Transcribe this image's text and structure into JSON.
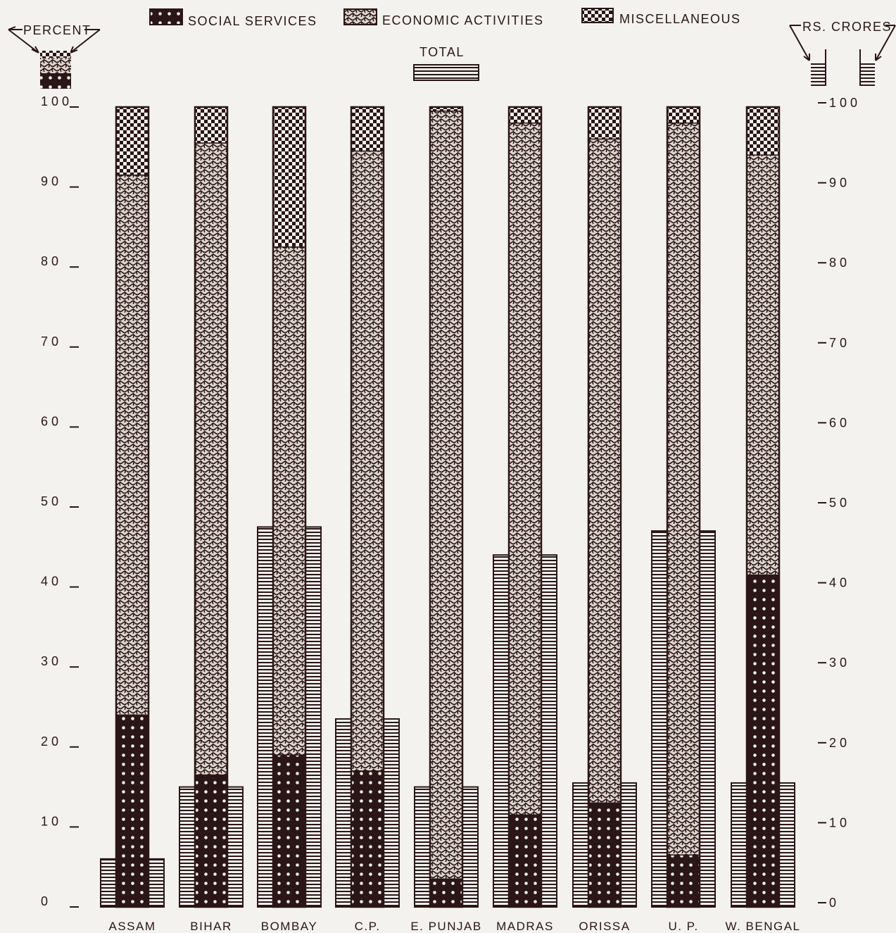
{
  "legend": {
    "social_services": "SOCIAL SERVICES",
    "economic_activities": "ECONOMIC ACTIVITIES",
    "miscellaneous": "MISCELLANEOUS",
    "total": "TOTAL"
  },
  "axis": {
    "left_label": "PERCENT",
    "right_label": "RS. CRORES"
  },
  "colors": {
    "ink": "#2a1616",
    "paper": "#f4f2ee"
  },
  "chart_data": {
    "type": "bar",
    "categories": [
      "ASSAM",
      "BIHAR",
      "BOMBAY",
      "C.P.",
      "E. PUNJAB",
      "MADRAS",
      "ORISSA",
      "U. P.",
      "W. BENGAL"
    ],
    "series": [
      {
        "name": "SOCIAL SERVICES",
        "values": [
          24.0,
          16.5,
          19.0,
          17.0,
          3.5,
          11.5,
          13.0,
          6.5,
          41.5
        ]
      },
      {
        "name": "ECONOMIC ACTIVITIES",
        "values": [
          67.5,
          79.0,
          63.5,
          77.5,
          96.0,
          86.5,
          83.0,
          91.5,
          52.5
        ]
      },
      {
        "name": "MISCELLANEOUS",
        "values": [
          8.5,
          4.5,
          17.5,
          5.5,
          0.5,
          2.0,
          4.0,
          2.0,
          6.0
        ]
      },
      {
        "name": "TOTAL",
        "values": [
          6.0,
          15.0,
          47.5,
          23.5,
          15.0,
          44.0,
          15.5,
          47.0,
          15.5
        ]
      }
    ],
    "left_axis": {
      "label": "PERCENT",
      "range": [
        0,
        100
      ],
      "ticks": [
        "0",
        "10",
        "20",
        "30",
        "40",
        "50",
        "60",
        "70",
        "80",
        "90",
        "100"
      ]
    },
    "right_axis": {
      "label": "RS. CRORES",
      "range": [
        0,
        100
      ],
      "ticks": [
        "0",
        "10",
        "20",
        "30",
        "40",
        "50",
        "60",
        "70",
        "80",
        "90",
        "100"
      ]
    },
    "legend_position": "top",
    "grid": false
  }
}
